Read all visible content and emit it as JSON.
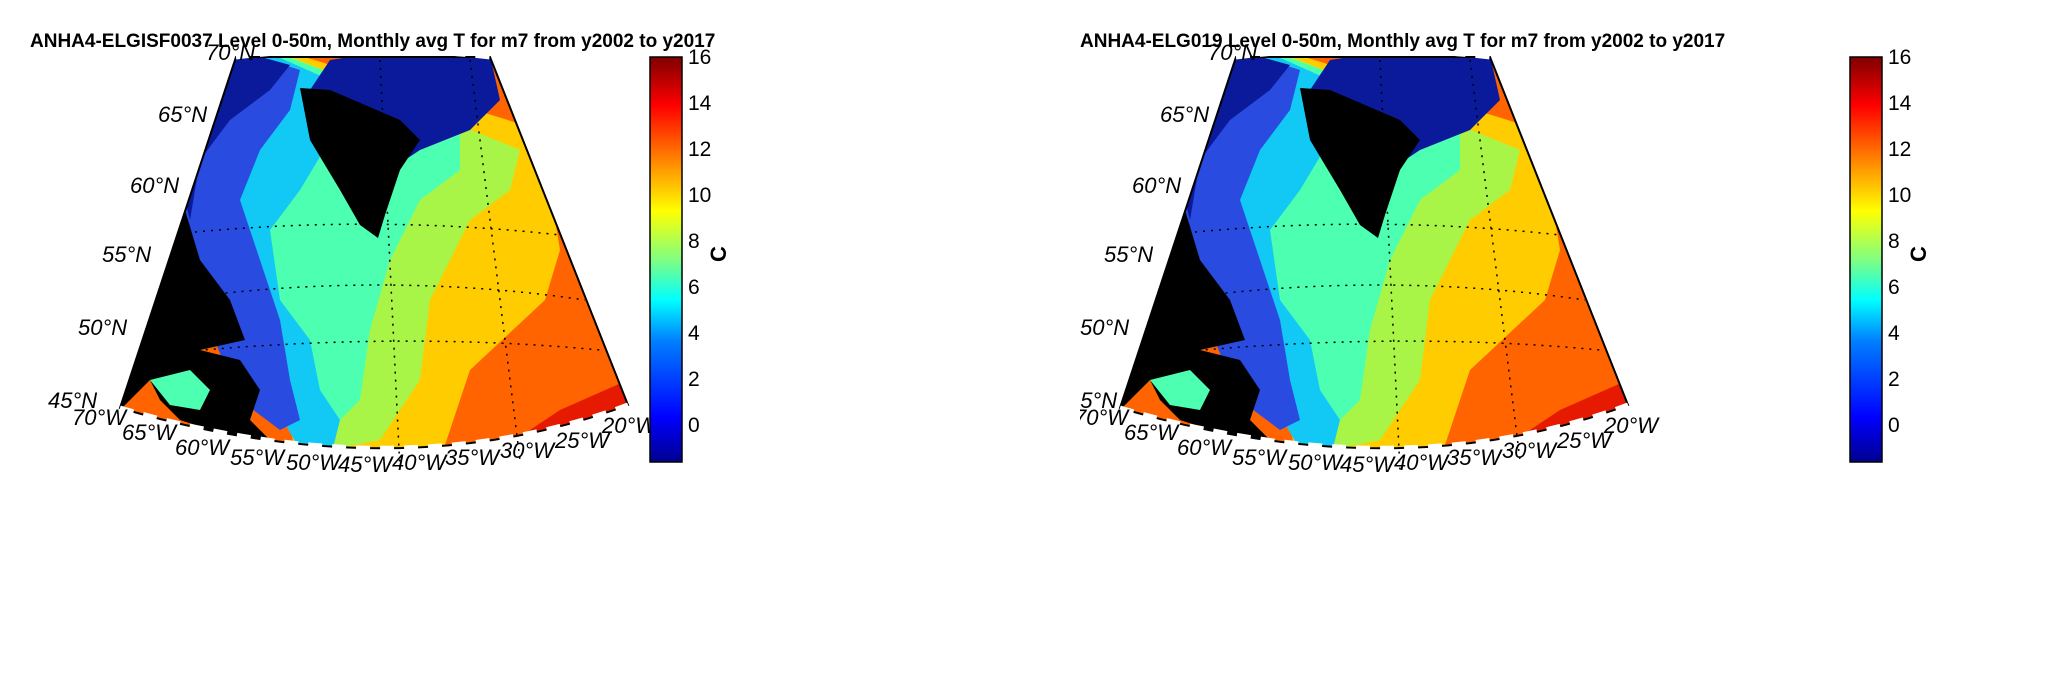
{
  "maps": [
    {
      "title": "ANHA4-ELGISF0037 Level 0-50m, Monthly avg T for m7 from y2002 to y2017"
    },
    {
      "title": "ANHA4-ELG019 Level 0-50m, Monthly avg T for m7 from y2002 to y2017"
    }
  ],
  "lat_labels": [
    "45°N",
    "50°N",
    "55°N",
    "60°N",
    "65°N",
    "70°N"
  ],
  "lon_labels": [
    "70°W",
    "65°W",
    "60°W",
    "55°W",
    "50°W",
    "45°W",
    "40°W",
    "35°W",
    "30°W",
    "25°W",
    "20°W"
  ],
  "colorbar": {
    "label": "C",
    "ticks": [
      "16",
      "14",
      "12",
      "10",
      "8",
      "6",
      "4",
      "2",
      "0"
    ],
    "range": [
      -1.5,
      16
    ],
    "colormap": [
      "#00008f",
      "#0000ff",
      "#0080ff",
      "#00ffff",
      "#80ff80",
      "#ffff00",
      "#ff8000",
      "#ff0000",
      "#800000"
    ]
  },
  "colors": {
    "land": "#000000",
    "arctic_cold": "#0a1a9a",
    "shelf_blue": "#2a4be0",
    "labrador_cyan": "#12c8f5",
    "basin_teal": "#4dffb0",
    "midlat_green": "#a8f548",
    "yellow_band": "#ffcc00",
    "orange_band": "#ff6400",
    "red_band": "#e61a00",
    "darkred_band": "#9a0000"
  }
}
